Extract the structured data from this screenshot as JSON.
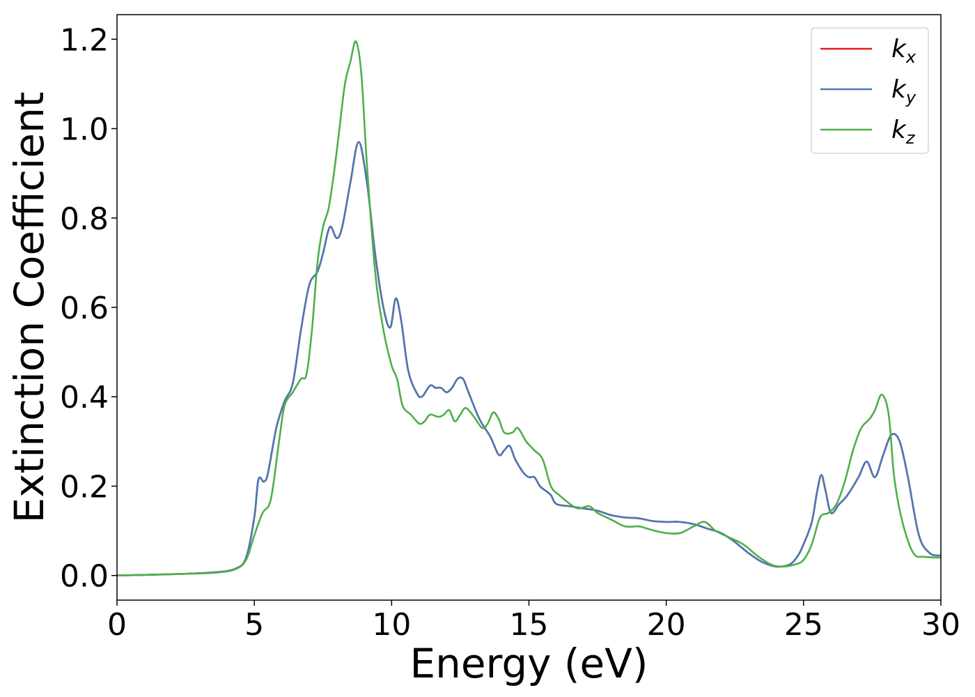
{
  "chart_data": {
    "type": "line",
    "title": "",
    "xlabel": "Energy (eV)",
    "ylabel": "Extinction Coefficient",
    "xlim": [
      0,
      30
    ],
    "ylim": [
      -0.055,
      1.255
    ],
    "xticks": [
      0,
      5,
      10,
      15,
      20,
      25,
      30
    ],
    "xtick_labels": [
      "0",
      "5",
      "10",
      "15",
      "20",
      "25",
      "30"
    ],
    "yticks": [
      0.0,
      0.2,
      0.4,
      0.6,
      0.8,
      1.0,
      1.2
    ],
    "ytick_labels": [
      "0.0",
      "0.2",
      "0.4",
      "0.6",
      "0.8",
      "1.0",
      "1.2"
    ],
    "grid": false,
    "legend_position": "top-right",
    "series": [
      {
        "name": "k",
        "subscript": "x",
        "color": "#e41a1c",
        "x": [
          0,
          2,
          3.5,
          4.3,
          4.7,
          5.0,
          5.15,
          5.35,
          5.5,
          5.8,
          6.1,
          6.4,
          6.7,
          7.0,
          7.3,
          7.5,
          7.75,
          8.0,
          8.2,
          8.5,
          8.8,
          9.1,
          9.4,
          9.7,
          9.95,
          10.15,
          10.35,
          10.6,
          10.9,
          11.1,
          11.4,
          11.6,
          11.8,
          12.0,
          12.2,
          12.4,
          12.6,
          12.8,
          13.2,
          13.6,
          13.9,
          14.1,
          14.3,
          14.5,
          14.8,
          15.0,
          15.2,
          15.4,
          15.6,
          15.8,
          16.0,
          16.5,
          17.0,
          17.5,
          18.0,
          18.5,
          19.0,
          19.5,
          20.0,
          20.5,
          21.0,
          21.5,
          22.0,
          22.5,
          23.0,
          23.5,
          24.0,
          24.5,
          24.8,
          25.0,
          25.3,
          25.5,
          25.65,
          25.8,
          26.0,
          26.3,
          26.6,
          27.0,
          27.3,
          27.6,
          27.9,
          28.2,
          28.5,
          28.8,
          29.2,
          29.6,
          30.0
        ],
        "y": [
          0.0,
          0.003,
          0.007,
          0.015,
          0.04,
          0.13,
          0.215,
          0.21,
          0.23,
          0.33,
          0.39,
          0.43,
          0.55,
          0.65,
          0.68,
          0.72,
          0.78,
          0.755,
          0.78,
          0.88,
          0.97,
          0.88,
          0.72,
          0.6,
          0.555,
          0.62,
          0.57,
          0.46,
          0.41,
          0.4,
          0.425,
          0.42,
          0.42,
          0.41,
          0.42,
          0.44,
          0.44,
          0.41,
          0.35,
          0.31,
          0.27,
          0.28,
          0.29,
          0.26,
          0.23,
          0.22,
          0.22,
          0.2,
          0.19,
          0.18,
          0.16,
          0.155,
          0.15,
          0.145,
          0.135,
          0.13,
          0.128,
          0.122,
          0.12,
          0.12,
          0.115,
          0.105,
          0.095,
          0.075,
          0.05,
          0.03,
          0.02,
          0.025,
          0.045,
          0.07,
          0.12,
          0.19,
          0.225,
          0.19,
          0.14,
          0.16,
          0.18,
          0.22,
          0.255,
          0.22,
          0.27,
          0.315,
          0.3,
          0.22,
          0.09,
          0.05,
          0.045
        ]
      },
      {
        "name": "k",
        "subscript": "y",
        "color": "#4a78b4",
        "x": [
          0,
          2,
          3.5,
          4.3,
          4.7,
          5.0,
          5.15,
          5.35,
          5.5,
          5.8,
          6.1,
          6.4,
          6.7,
          7.0,
          7.3,
          7.5,
          7.75,
          8.0,
          8.2,
          8.5,
          8.8,
          9.1,
          9.4,
          9.7,
          9.95,
          10.15,
          10.35,
          10.6,
          10.9,
          11.1,
          11.4,
          11.6,
          11.8,
          12.0,
          12.2,
          12.4,
          12.6,
          12.8,
          13.2,
          13.6,
          13.9,
          14.1,
          14.3,
          14.5,
          14.8,
          15.0,
          15.2,
          15.4,
          15.6,
          15.8,
          16.0,
          16.5,
          17.0,
          17.5,
          18.0,
          18.5,
          19.0,
          19.5,
          20.0,
          20.5,
          21.0,
          21.5,
          22.0,
          22.5,
          23.0,
          23.5,
          24.0,
          24.5,
          24.8,
          25.0,
          25.3,
          25.5,
          25.65,
          25.8,
          26.0,
          26.3,
          26.6,
          27.0,
          27.3,
          27.6,
          27.9,
          28.2,
          28.5,
          28.8,
          29.2,
          29.6,
          30.0
        ],
        "y": [
          0.0,
          0.003,
          0.007,
          0.015,
          0.04,
          0.13,
          0.215,
          0.21,
          0.23,
          0.33,
          0.39,
          0.43,
          0.55,
          0.65,
          0.68,
          0.72,
          0.78,
          0.755,
          0.78,
          0.88,
          0.97,
          0.88,
          0.72,
          0.6,
          0.555,
          0.62,
          0.57,
          0.46,
          0.41,
          0.4,
          0.425,
          0.42,
          0.42,
          0.41,
          0.42,
          0.44,
          0.44,
          0.41,
          0.35,
          0.31,
          0.27,
          0.28,
          0.29,
          0.26,
          0.23,
          0.22,
          0.22,
          0.2,
          0.19,
          0.18,
          0.16,
          0.155,
          0.15,
          0.145,
          0.135,
          0.13,
          0.128,
          0.122,
          0.12,
          0.12,
          0.115,
          0.105,
          0.095,
          0.075,
          0.05,
          0.03,
          0.02,
          0.025,
          0.045,
          0.07,
          0.12,
          0.19,
          0.225,
          0.19,
          0.14,
          0.16,
          0.18,
          0.22,
          0.255,
          0.22,
          0.27,
          0.315,
          0.3,
          0.22,
          0.09,
          0.05,
          0.045
        ]
      },
      {
        "name": "k",
        "subscript": "z",
        "color": "#4daf4a",
        "x": [
          0,
          2,
          3.5,
          4.3,
          4.7,
          5.0,
          5.3,
          5.6,
          5.9,
          6.1,
          6.4,
          6.7,
          6.9,
          7.1,
          7.3,
          7.5,
          7.7,
          7.9,
          8.1,
          8.3,
          8.5,
          8.7,
          8.9,
          9.1,
          9.4,
          9.7,
          10.0,
          10.2,
          10.4,
          10.7,
          11.0,
          11.2,
          11.4,
          11.7,
          11.9,
          12.1,
          12.3,
          12.5,
          12.7,
          13.0,
          13.3,
          13.5,
          13.7,
          13.9,
          14.1,
          14.4,
          14.6,
          14.9,
          15.2,
          15.5,
          15.8,
          16.1,
          16.5,
          16.8,
          17.2,
          17.5,
          18.0,
          18.5,
          19.0,
          19.3,
          19.6,
          20.0,
          20.5,
          21.0,
          21.4,
          21.8,
          22.3,
          22.8,
          23.3,
          23.8,
          24.2,
          24.7,
          25.0,
          25.3,
          25.6,
          25.9,
          26.2,
          26.5,
          26.8,
          27.1,
          27.4,
          27.6,
          27.85,
          28.1,
          28.3,
          28.6,
          29.0,
          29.4,
          30.0
        ],
        "y": [
          0.0,
          0.003,
          0.006,
          0.014,
          0.035,
          0.09,
          0.14,
          0.17,
          0.3,
          0.38,
          0.41,
          0.44,
          0.45,
          0.55,
          0.7,
          0.78,
          0.82,
          0.9,
          1.0,
          1.1,
          1.15,
          1.195,
          1.12,
          0.92,
          0.68,
          0.55,
          0.47,
          0.44,
          0.38,
          0.36,
          0.34,
          0.345,
          0.36,
          0.355,
          0.36,
          0.37,
          0.345,
          0.36,
          0.375,
          0.355,
          0.33,
          0.34,
          0.365,
          0.35,
          0.32,
          0.32,
          0.33,
          0.3,
          0.28,
          0.26,
          0.2,
          0.18,
          0.16,
          0.15,
          0.155,
          0.14,
          0.125,
          0.11,
          0.11,
          0.105,
          0.1,
          0.095,
          0.095,
          0.11,
          0.12,
          0.1,
          0.085,
          0.07,
          0.045,
          0.025,
          0.02,
          0.025,
          0.035,
          0.07,
          0.13,
          0.14,
          0.16,
          0.21,
          0.28,
          0.33,
          0.35,
          0.37,
          0.405,
          0.36,
          0.22,
          0.12,
          0.05,
          0.042,
          0.04
        ]
      }
    ]
  }
}
